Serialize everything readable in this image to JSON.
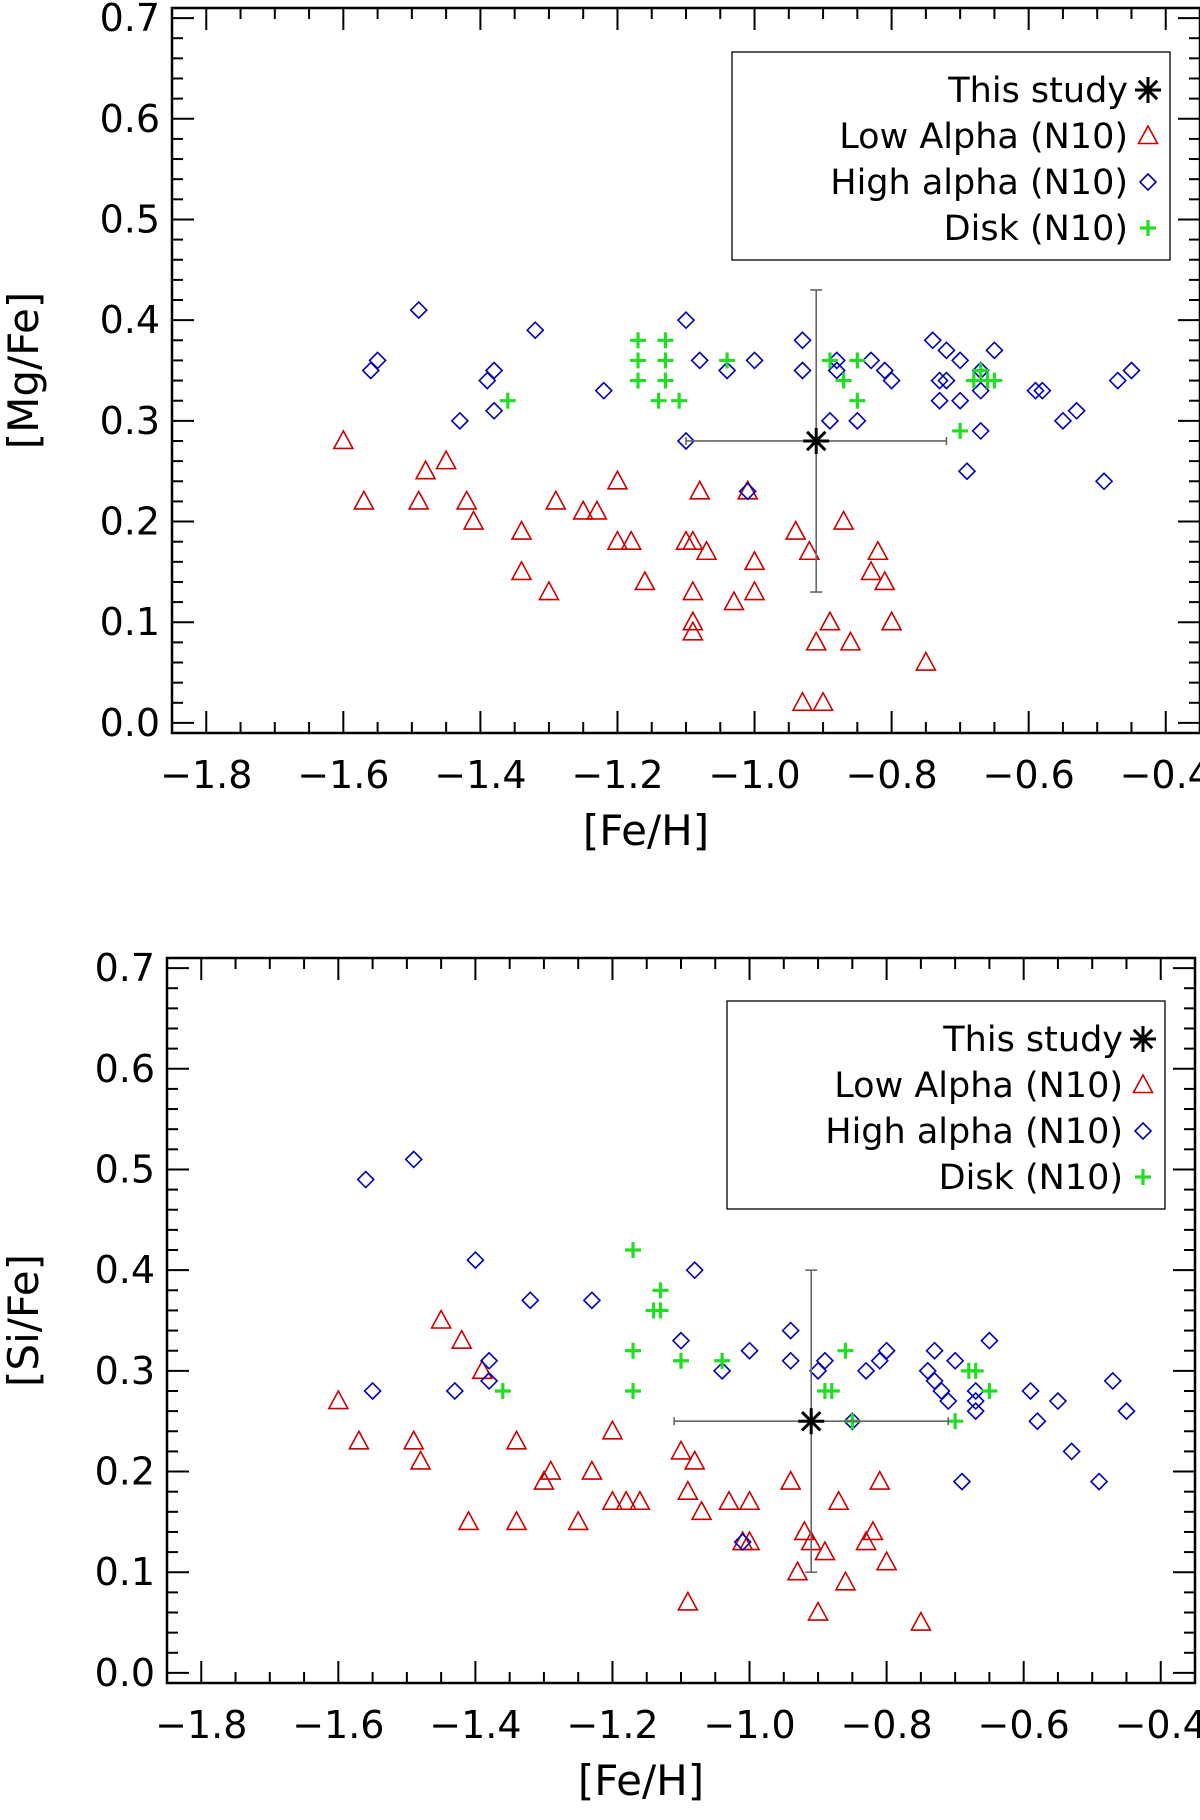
{
  "chart_data": [
    {
      "type": "scatter",
      "title": "",
      "xlabel": "[Fe/H]",
      "ylabel": "[Mg/Fe]",
      "xlim": [
        -1.85,
        -0.35
      ],
      "ylim": [
        -0.01,
        0.71
      ],
      "xticks": [
        -1.8,
        -1.6,
        -1.4,
        -1.2,
        -1.0,
        -0.8,
        -0.6,
        -0.4
      ],
      "xtick_labels": [
        "−1.8",
        "−1.6",
        "−1.4",
        "−1.2",
        "−1.0",
        "−0.8",
        "−0.6",
        "−0.4"
      ],
      "yticks": [
        0.0,
        0.1,
        0.2,
        0.3,
        0.4,
        0.5,
        0.6,
        0.7
      ],
      "ytick_labels": [
        "0.0",
        "0.1",
        "0.2",
        "0.3",
        "0.4",
        "0.5",
        "0.6",
        "0.7"
      ],
      "grid": false,
      "legend_position": "top-right",
      "series": [
        {
          "name": "This study",
          "marker": "asterisk",
          "color": "#000000",
          "points": [
            [
              -0.91,
              0.28
            ]
          ],
          "xerr": [
            0.19
          ],
          "yerr": [
            0.15
          ]
        },
        {
          "name": "Low Alpha (N10)",
          "marker": "triangle",
          "color": "#cc0000",
          "points": [
            [
              -1.6,
              0.28
            ],
            [
              -1.57,
              0.22
            ],
            [
              -1.49,
              0.22
            ],
            [
              -1.48,
              0.25
            ],
            [
              -1.45,
              0.26
            ],
            [
              -1.42,
              0.22
            ],
            [
              -1.41,
              0.2
            ],
            [
              -1.34,
              0.19
            ],
            [
              -1.34,
              0.15
            ],
            [
              -1.3,
              0.13
            ],
            [
              -1.29,
              0.22
            ],
            [
              -1.25,
              0.21
            ],
            [
              -1.23,
              0.21
            ],
            [
              -1.2,
              0.24
            ],
            [
              -1.2,
              0.18
            ],
            [
              -1.18,
              0.18
            ],
            [
              -1.16,
              0.14
            ],
            [
              -1.1,
              0.18
            ],
            [
              -1.09,
              0.18
            ],
            [
              -1.09,
              0.13
            ],
            [
              -1.09,
              0.1
            ],
            [
              -1.09,
              0.09
            ],
            [
              -1.08,
              0.23
            ],
            [
              -1.07,
              0.17
            ],
            [
              -1.03,
              0.12
            ],
            [
              -1.01,
              0.23
            ],
            [
              -1.0,
              0.16
            ],
            [
              -1.0,
              0.13
            ],
            [
              -0.94,
              0.19
            ],
            [
              -0.93,
              0.02
            ],
            [
              -0.92,
              0.17
            ],
            [
              -0.91,
              0.08
            ],
            [
              -0.9,
              0.02
            ],
            [
              -0.89,
              0.1
            ],
            [
              -0.87,
              0.2
            ],
            [
              -0.86,
              0.08
            ],
            [
              -0.83,
              0.15
            ],
            [
              -0.82,
              0.17
            ],
            [
              -0.81,
              0.14
            ],
            [
              -0.8,
              0.1
            ],
            [
              -0.75,
              0.06
            ]
          ]
        },
        {
          "name": "High alpha (N10)",
          "marker": "diamond",
          "color": "#0000bb",
          "points": [
            [
              -1.56,
              0.35
            ],
            [
              -1.55,
              0.36
            ],
            [
              -1.49,
              0.41
            ],
            [
              -1.43,
              0.3
            ],
            [
              -1.39,
              0.34
            ],
            [
              -1.38,
              0.35
            ],
            [
              -1.38,
              0.31
            ],
            [
              -1.32,
              0.39
            ],
            [
              -1.22,
              0.33
            ],
            [
              -1.1,
              0.4
            ],
            [
              -1.1,
              0.28
            ],
            [
              -1.08,
              0.36
            ],
            [
              -1.04,
              0.35
            ],
            [
              -1.01,
              0.23
            ],
            [
              -1.0,
              0.36
            ],
            [
              -0.93,
              0.38
            ],
            [
              -0.93,
              0.35
            ],
            [
              -0.89,
              0.3
            ],
            [
              -0.88,
              0.36
            ],
            [
              -0.88,
              0.35
            ],
            [
              -0.85,
              0.3
            ],
            [
              -0.83,
              0.36
            ],
            [
              -0.81,
              0.35
            ],
            [
              -0.8,
              0.34
            ],
            [
              -0.74,
              0.38
            ],
            [
              -0.73,
              0.34
            ],
            [
              -0.73,
              0.32
            ],
            [
              -0.72,
              0.37
            ],
            [
              -0.72,
              0.34
            ],
            [
              -0.7,
              0.36
            ],
            [
              -0.7,
              0.32
            ],
            [
              -0.69,
              0.25
            ],
            [
              -0.67,
              0.35
            ],
            [
              -0.67,
              0.33
            ],
            [
              -0.67,
              0.29
            ],
            [
              -0.65,
              0.37
            ],
            [
              -0.59,
              0.33
            ],
            [
              -0.58,
              0.33
            ],
            [
              -0.55,
              0.3
            ],
            [
              -0.53,
              0.31
            ],
            [
              -0.49,
              0.24
            ],
            [
              -0.47,
              0.34
            ],
            [
              -0.45,
              0.35
            ]
          ]
        },
        {
          "name": "Disk (N10)",
          "marker": "plus",
          "color": "#22dd22",
          "points": [
            [
              -1.36,
              0.32
            ],
            [
              -1.17,
              0.38
            ],
            [
              -1.17,
              0.36
            ],
            [
              -1.17,
              0.34
            ],
            [
              -1.13,
              0.38
            ],
            [
              -1.13,
              0.36
            ],
            [
              -1.13,
              0.34
            ],
            [
              -1.14,
              0.32
            ],
            [
              -1.11,
              0.32
            ],
            [
              -1.04,
              0.36
            ],
            [
              -0.89,
              0.36
            ],
            [
              -0.87,
              0.34
            ],
            [
              -0.85,
              0.36
            ],
            [
              -0.85,
              0.32
            ],
            [
              -0.7,
              0.29
            ],
            [
              -0.68,
              0.34
            ],
            [
              -0.67,
              0.35
            ],
            [
              -0.66,
              0.34
            ],
            [
              -0.65,
              0.34
            ]
          ]
        }
      ]
    },
    {
      "type": "scatter",
      "title": "",
      "xlabel": "[Fe/H]",
      "ylabel": "[Si/Fe]",
      "xlim": [
        -1.85,
        -0.35
      ],
      "ylim": [
        -0.01,
        0.71
      ],
      "xticks": [
        -1.8,
        -1.6,
        -1.4,
        -1.2,
        -1.0,
        -0.8,
        -0.6,
        -0.4
      ],
      "xtick_labels": [
        "−1.8",
        "−1.6",
        "−1.4",
        "−1.2",
        "−1.0",
        "−0.8",
        "−0.6",
        "−0.4"
      ],
      "yticks": [
        0.0,
        0.1,
        0.2,
        0.3,
        0.4,
        0.5,
        0.6,
        0.7
      ],
      "ytick_labels": [
        "0.0",
        "0.1",
        "0.2",
        "0.3",
        "0.4",
        "0.5",
        "0.6",
        "0.7"
      ],
      "grid": false,
      "legend_position": "top-right",
      "series": [
        {
          "name": "This study",
          "marker": "asterisk",
          "color": "#000000",
          "points": [
            [
              -0.91,
              0.25
            ]
          ],
          "xerr": [
            0.2
          ],
          "yerr": [
            0.15
          ]
        },
        {
          "name": "Low Alpha (N10)",
          "marker": "triangle",
          "color": "#cc0000",
          "points": [
            [
              -1.6,
              0.27
            ],
            [
              -1.57,
              0.23
            ],
            [
              -1.49,
              0.23
            ],
            [
              -1.48,
              0.21
            ],
            [
              -1.45,
              0.35
            ],
            [
              -1.42,
              0.33
            ],
            [
              -1.41,
              0.15
            ],
            [
              -1.39,
              0.3
            ],
            [
              -1.34,
              0.23
            ],
            [
              -1.34,
              0.15
            ],
            [
              -1.3,
              0.19
            ],
            [
              -1.29,
              0.2
            ],
            [
              -1.25,
              0.15
            ],
            [
              -1.23,
              0.2
            ],
            [
              -1.2,
              0.24
            ],
            [
              -1.2,
              0.17
            ],
            [
              -1.18,
              0.17
            ],
            [
              -1.16,
              0.17
            ],
            [
              -1.1,
              0.22
            ],
            [
              -1.09,
              0.18
            ],
            [
              -1.09,
              0.07
            ],
            [
              -1.08,
              0.21
            ],
            [
              -1.07,
              0.16
            ],
            [
              -1.03,
              0.17
            ],
            [
              -1.01,
              0.13
            ],
            [
              -1.0,
              0.17
            ],
            [
              -1.0,
              0.13
            ],
            [
              -0.94,
              0.19
            ],
            [
              -0.93,
              0.1
            ],
            [
              -0.92,
              0.14
            ],
            [
              -0.91,
              0.13
            ],
            [
              -0.9,
              0.06
            ],
            [
              -0.89,
              0.12
            ],
            [
              -0.87,
              0.17
            ],
            [
              -0.86,
              0.09
            ],
            [
              -0.83,
              0.13
            ],
            [
              -0.82,
              0.14
            ],
            [
              -0.81,
              0.19
            ],
            [
              -0.8,
              0.11
            ],
            [
              -0.75,
              0.05
            ]
          ]
        },
        {
          "name": "High alpha (N10)",
          "marker": "diamond",
          "color": "#0000bb",
          "points": [
            [
              -1.56,
              0.49
            ],
            [
              -1.55,
              0.28
            ],
            [
              -1.49,
              0.51
            ],
            [
              -1.43,
              0.28
            ],
            [
              -1.4,
              0.41
            ],
            [
              -1.38,
              0.31
            ],
            [
              -1.38,
              0.29
            ],
            [
              -1.32,
              0.37
            ],
            [
              -1.23,
              0.37
            ],
            [
              -1.1,
              0.33
            ],
            [
              -1.08,
              0.4
            ],
            [
              -1.04,
              0.3
            ],
            [
              -1.01,
              0.13
            ],
            [
              -1.0,
              0.32
            ],
            [
              -0.94,
              0.34
            ],
            [
              -0.94,
              0.31
            ],
            [
              -0.9,
              0.3
            ],
            [
              -0.89,
              0.31
            ],
            [
              -0.85,
              0.25
            ],
            [
              -0.83,
              0.3
            ],
            [
              -0.81,
              0.31
            ],
            [
              -0.8,
              0.32
            ],
            [
              -0.74,
              0.3
            ],
            [
              -0.73,
              0.32
            ],
            [
              -0.73,
              0.29
            ],
            [
              -0.72,
              0.28
            ],
            [
              -0.71,
              0.27
            ],
            [
              -0.7,
              0.31
            ],
            [
              -0.69,
              0.19
            ],
            [
              -0.67,
              0.28
            ],
            [
              -0.67,
              0.27
            ],
            [
              -0.67,
              0.26
            ],
            [
              -0.65,
              0.33
            ],
            [
              -0.59,
              0.28
            ],
            [
              -0.58,
              0.25
            ],
            [
              -0.55,
              0.27
            ],
            [
              -0.53,
              0.22
            ],
            [
              -0.49,
              0.19
            ],
            [
              -0.47,
              0.29
            ],
            [
              -0.45,
              0.26
            ]
          ]
        },
        {
          "name": "Disk (N10)",
          "marker": "plus",
          "color": "#22dd22",
          "points": [
            [
              -1.36,
              0.28
            ],
            [
              -1.17,
              0.42
            ],
            [
              -1.17,
              0.32
            ],
            [
              -1.17,
              0.28
            ],
            [
              -1.13,
              0.38
            ],
            [
              -1.13,
              0.36
            ],
            [
              -1.14,
              0.36
            ],
            [
              -1.1,
              0.31
            ],
            [
              -1.04,
              0.31
            ],
            [
              -0.89,
              0.28
            ],
            [
              -0.88,
              0.28
            ],
            [
              -0.86,
              0.32
            ],
            [
              -0.85,
              0.25
            ],
            [
              -0.7,
              0.25
            ],
            [
              -0.68,
              0.3
            ],
            [
              -0.67,
              0.3
            ],
            [
              -0.65,
              0.28
            ]
          ]
        }
      ]
    }
  ]
}
